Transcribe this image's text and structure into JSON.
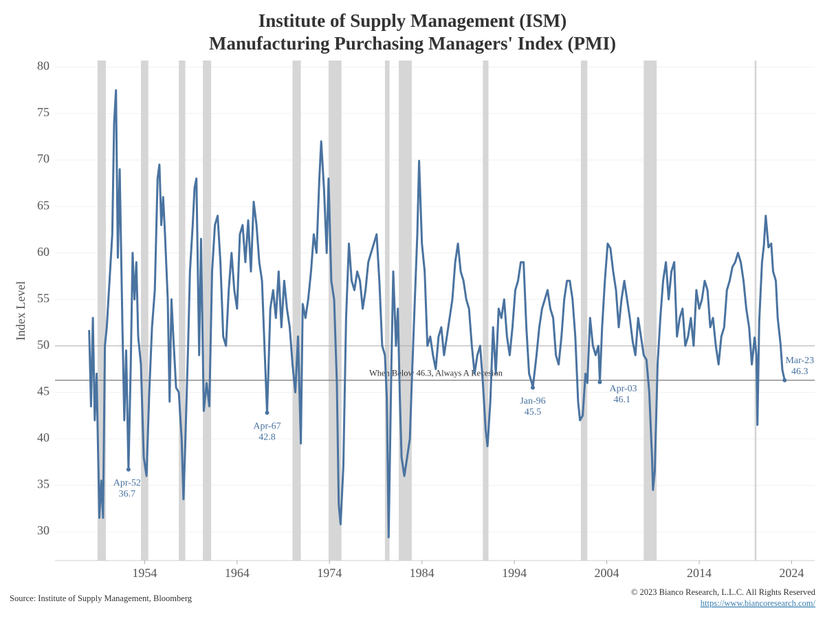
{
  "chart_data": {
    "type": "line",
    "title": "Institute of Supply Management (ISM)",
    "subtitle": "Manufacturing Purchasing Managers' Index (PMI)",
    "y_label": "Index Level",
    "source": "Source: Institute of Supply Management, Bloomberg",
    "copyright": "© 2023 Bianco Research, L.L.C. All Rights Reserved",
    "url": "https://www.biancoresearch.com/",
    "xlim": [
      1944.3,
      2026.5
    ],
    "xticks": [
      1954,
      1964,
      1974,
      1984,
      1994,
      2004,
      2014,
      2024
    ],
    "ylim": [
      26.9,
      80.7
    ],
    "yticks": [
      30,
      35,
      40,
      45,
      50,
      55,
      60,
      65,
      70,
      75,
      80
    ],
    "grid": true,
    "recessions": [
      [
        1948.9,
        1949.8
      ],
      [
        1953.6,
        1954.4
      ],
      [
        1957.7,
        1958.4
      ],
      [
        1960.3,
        1961.2
      ],
      [
        1970.0,
        1970.9
      ],
      [
        1973.9,
        1975.3
      ],
      [
        1980.0,
        1980.5
      ],
      [
        1981.5,
        1982.9
      ],
      [
        1990.6,
        1991.2
      ],
      [
        2001.2,
        2001.9
      ],
      [
        2008.0,
        2009.4
      ],
      [
        2020.0,
        2020.2
      ]
    ],
    "reference_lines": [
      {
        "value": 50
      },
      {
        "value": 46.3,
        "label": "When Below 46.3, Always A Recesion"
      }
    ],
    "annotations": [
      {
        "x": 1952.25,
        "label": "Apr-52",
        "value": 36.7
      },
      {
        "x": 1967.25,
        "label": "Apr-67",
        "value": 42.8
      },
      {
        "x": 1996.0,
        "label": "Jan-96",
        "value": 45.5
      },
      {
        "x": 2003.25,
        "label": "Apr-03",
        "value": 46.1
      },
      {
        "x": 2023.25,
        "label": "Mar-23",
        "value": 46.3
      }
    ],
    "series": [
      {
        "name": "ISM Manufacturing PMI",
        "color": "#4a73a0",
        "x": [
          1948.0,
          1948.2,
          1948.4,
          1948.6,
          1948.8,
          1949.1,
          1949.3,
          1949.5,
          1949.7,
          1949.9,
          1950.2,
          1950.5,
          1950.7,
          1950.9,
          1951.1,
          1951.3,
          1951.6,
          1951.8,
          1952.0,
          1952.25,
          1952.5,
          1952.7,
          1952.9,
          1953.1,
          1953.3,
          1953.6,
          1953.9,
          1954.2,
          1954.5,
          1954.8,
          1955.1,
          1955.4,
          1955.6,
          1955.8,
          1956.0,
          1956.2,
          1956.5,
          1956.7,
          1956.9,
          1957.1,
          1957.4,
          1957.7,
          1958.0,
          1958.2,
          1958.4,
          1958.7,
          1958.9,
          1959.2,
          1959.4,
          1959.6,
          1959.9,
          1960.1,
          1960.4,
          1960.7,
          1961.0,
          1961.3,
          1961.6,
          1961.9,
          1962.2,
          1962.5,
          1962.8,
          1963.1,
          1963.4,
          1963.7,
          1964.0,
          1964.3,
          1964.6,
          1964.9,
          1965.2,
          1965.5,
          1965.8,
          1966.1,
          1966.4,
          1966.7,
          1967.0,
          1967.25,
          1967.6,
          1967.9,
          1968.2,
          1968.5,
          1968.8,
          1969.1,
          1969.4,
          1969.7,
          1970.0,
          1970.3,
          1970.6,
          1970.9,
          1971.1,
          1971.4,
          1971.7,
          1972.0,
          1972.3,
          1972.6,
          1972.9,
          1973.1,
          1973.4,
          1973.7,
          1973.9,
          1974.2,
          1974.5,
          1974.8,
          1975.0,
          1975.2,
          1975.5,
          1975.8,
          1976.1,
          1976.4,
          1976.7,
          1977.0,
          1977.3,
          1977.6,
          1977.9,
          1978.2,
          1978.5,
          1978.8,
          1979.1,
          1979.4,
          1979.7,
          1980.0,
          1980.2,
          1980.4,
          1980.7,
          1980.9,
          1981.2,
          1981.4,
          1981.6,
          1981.8,
          1982.1,
          1982.4,
          1982.7,
          1982.9,
          1983.2,
          1983.5,
          1983.7,
          1984.0,
          1984.3,
          1984.6,
          1984.9,
          1985.2,
          1985.5,
          1985.8,
          1986.1,
          1986.4,
          1986.7,
          1987.0,
          1987.3,
          1987.6,
          1987.9,
          1988.2,
          1988.5,
          1988.8,
          1989.1,
          1989.4,
          1989.7,
          1990.0,
          1990.3,
          1990.6,
          1990.9,
          1991.1,
          1991.4,
          1991.7,
          1992.0,
          1992.3,
          1992.6,
          1992.9,
          1993.2,
          1993.5,
          1993.8,
          1994.1,
          1994.4,
          1994.7,
          1995.0,
          1995.3,
          1995.6,
          1995.9,
          1996.0,
          1996.4,
          1996.7,
          1997.0,
          1997.3,
          1997.6,
          1997.9,
          1998.2,
          1998.5,
          1998.8,
          1999.1,
          1999.4,
          1999.7,
          2000.0,
          2000.3,
          2000.6,
          2000.9,
          2001.1,
          2001.4,
          2001.7,
          2001.9,
          2002.2,
          2002.5,
          2002.8,
          2003.1,
          2003.25,
          2003.5,
          2003.8,
          2004.1,
          2004.4,
          2004.7,
          2005.0,
          2005.3,
          2005.6,
          2005.9,
          2006.2,
          2006.5,
          2006.8,
          2007.1,
          2007.4,
          2007.7,
          2008.0,
          2008.3,
          2008.6,
          2008.9,
          2009.0,
          2009.2,
          2009.5,
          2009.8,
          2010.1,
          2010.4,
          2010.7,
          2011.0,
          2011.3,
          2011.6,
          2011.9,
          2012.2,
          2012.5,
          2012.8,
          2013.1,
          2013.4,
          2013.7,
          2014.0,
          2014.3,
          2014.6,
          2014.9,
          2015.2,
          2015.5,
          2015.8,
          2016.1,
          2016.4,
          2016.7,
          2017.0,
          2017.3,
          2017.6,
          2017.9,
          2018.2,
          2018.5,
          2018.8,
          2019.1,
          2019.4,
          2019.7,
          2020.0,
          2020.2,
          2020.3,
          2020.5,
          2020.8,
          2021.0,
          2021.2,
          2021.5,
          2021.8,
          2022.0,
          2022.3,
          2022.5,
          2022.8,
          2023.0,
          2023.25
        ],
        "values": [
          51.7,
          43.5,
          53,
          42,
          47,
          31.5,
          35.5,
          31.5,
          50,
          52,
          57,
          62,
          74,
          77.5,
          59.5,
          69,
          52,
          42,
          49.5,
          36.7,
          48,
          60,
          55,
          59,
          51,
          48,
          38,
          36,
          45,
          52,
          56,
          68,
          69.5,
          63,
          66,
          62,
          55,
          44,
          55,
          51,
          45.5,
          45,
          40,
          33.5,
          39.5,
          50,
          58,
          63,
          67,
          68,
          49,
          61.5,
          43,
          46,
          43.5,
          58,
          63,
          64,
          59,
          51,
          50,
          56,
          60,
          56,
          54,
          62,
          63,
          59,
          63.5,
          58,
          65.5,
          63,
          59,
          57,
          49,
          42.8,
          54,
          56,
          53,
          58,
          52,
          57,
          54,
          52,
          48,
          45,
          51,
          39.5,
          54.5,
          53,
          55,
          58,
          62,
          60,
          68,
          72,
          67,
          60,
          68,
          57,
          55,
          46,
          33,
          30.8,
          37,
          53,
          61,
          57,
          56,
          58,
          57,
          54,
          56,
          59,
          60,
          61,
          62,
          57,
          50,
          49,
          44.5,
          29.4,
          48,
          58,
          50,
          54,
          45,
          38,
          36,
          38,
          40,
          46,
          54,
          62,
          69.9,
          61,
          58,
          50,
          51,
          49,
          47.5,
          51,
          52,
          49,
          51,
          53,
          55,
          59,
          61,
          58,
          57,
          55,
          54,
          50,
          47,
          49,
          50,
          46,
          41,
          39.2,
          44,
          52,
          47,
          54,
          53,
          55,
          51,
          49,
          52,
          56,
          57,
          59,
          59,
          52,
          47,
          46,
          45.5,
          49,
          52,
          54,
          55,
          56,
          54,
          53,
          49,
          48,
          51,
          55,
          57,
          57,
          55,
          51,
          44,
          42,
          42.5,
          47,
          46,
          53,
          50,
          49,
          50,
          46.1,
          52,
          57,
          61,
          60.5,
          58,
          56,
          52,
          55,
          57,
          55,
          53,
          50.5,
          49,
          53,
          51,
          49,
          48.5,
          45,
          38,
          34.5,
          36.5,
          48,
          53,
          57,
          59,
          55,
          58,
          59,
          51,
          53,
          54,
          50,
          51,
          53,
          50,
          56,
          54,
          55,
          57,
          56,
          52,
          53,
          50,
          48,
          51,
          52,
          56,
          57,
          58.5,
          59,
          60,
          59,
          57,
          54,
          52,
          48,
          50.9,
          49,
          41.5,
          52.6,
          59,
          60.8,
          64,
          60.6,
          61,
          58,
          57,
          53,
          50.2,
          47.4,
          46.3
        ]
      }
    ]
  }
}
